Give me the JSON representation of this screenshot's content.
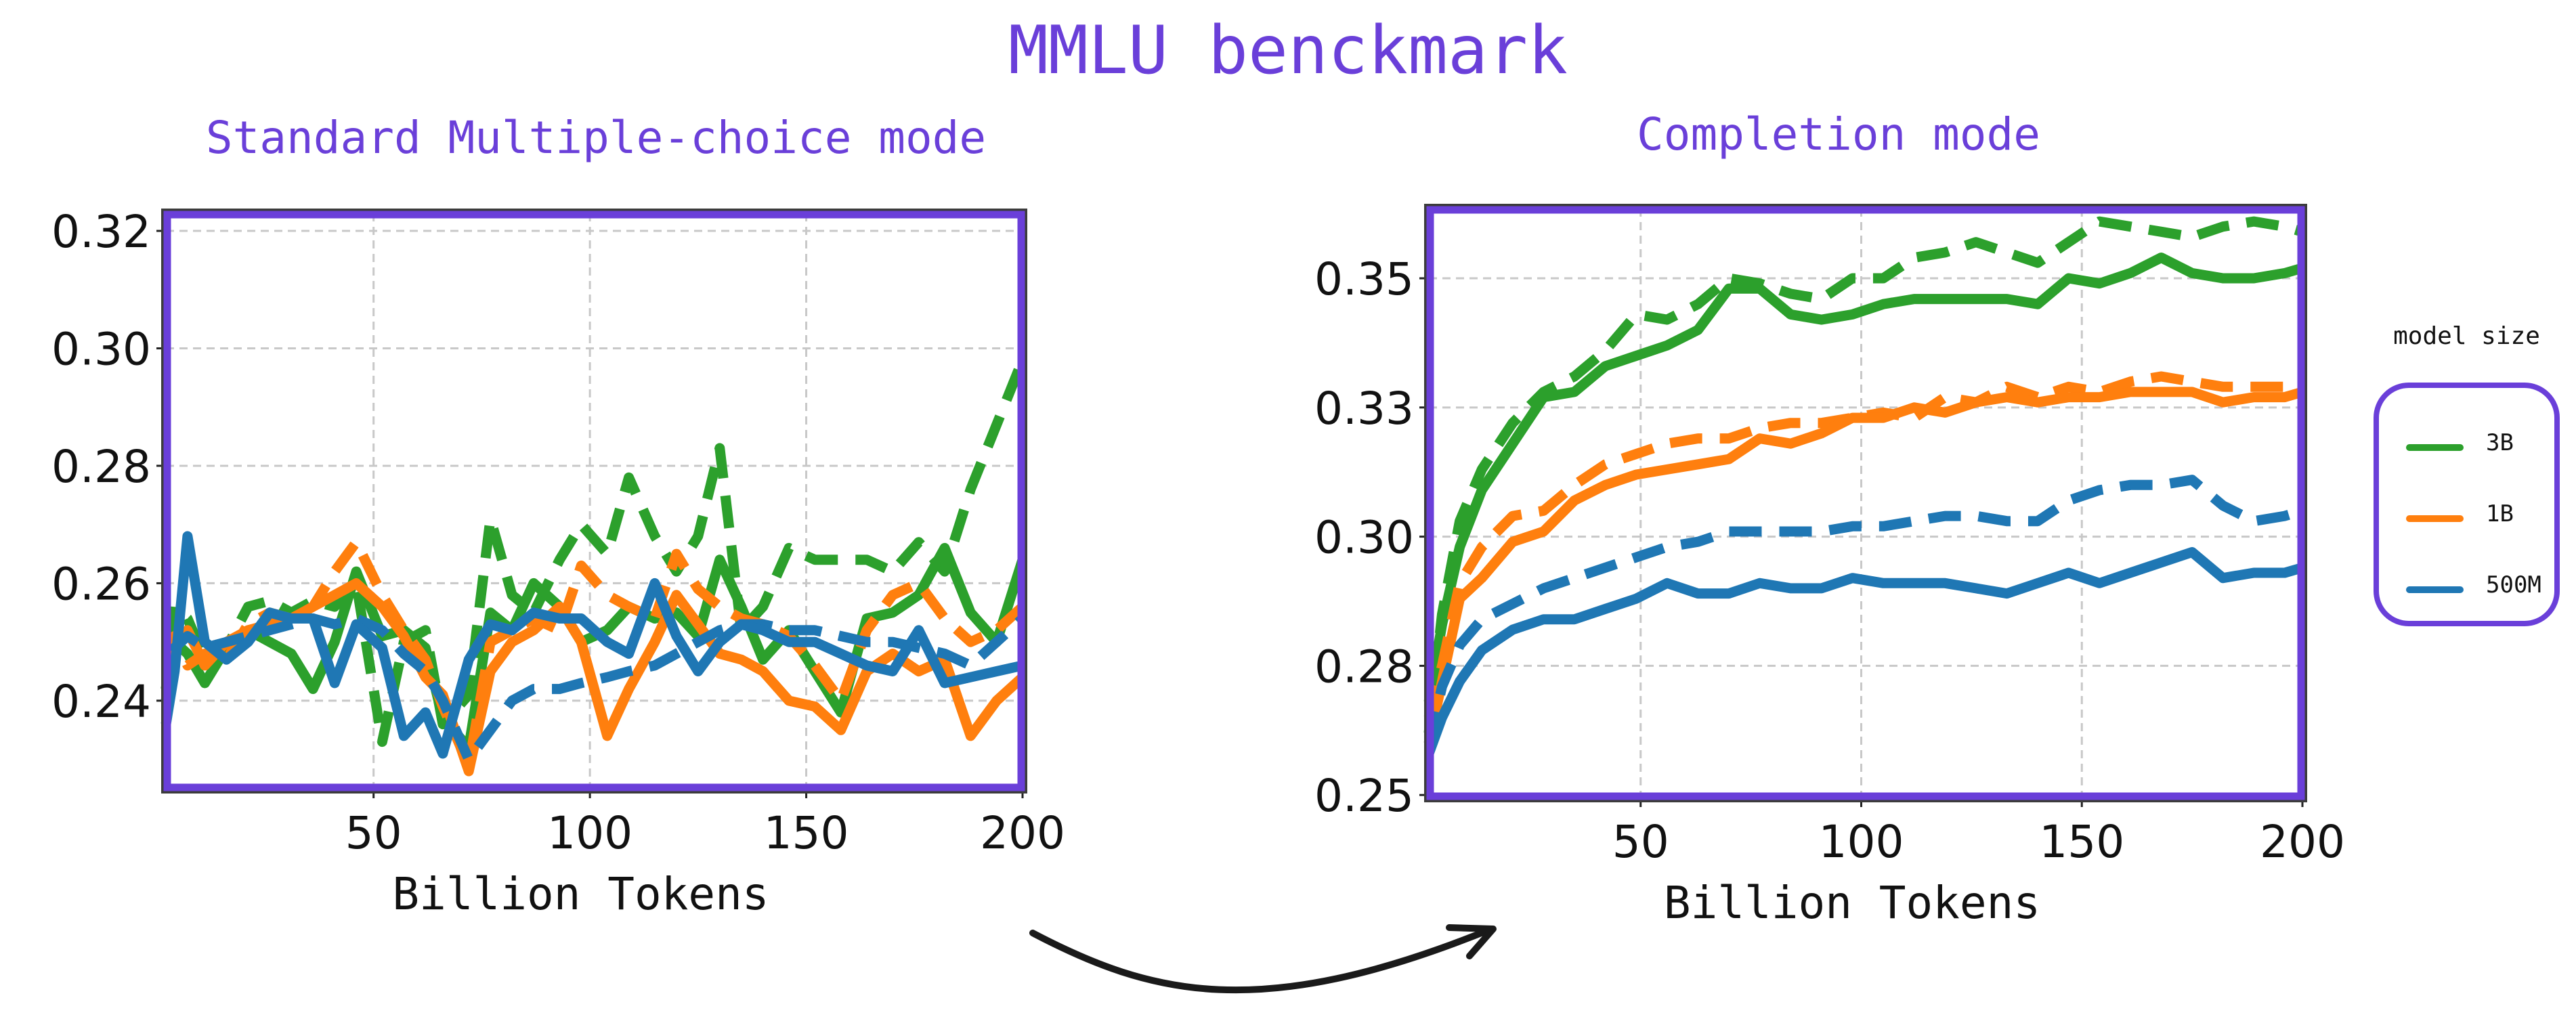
{
  "title": "MMLU benckmark",
  "colors": {
    "accent": "#6A3FD9",
    "green": "#2CA02C",
    "orange": "#FF7F0E",
    "blue": "#1F77B4"
  },
  "legend": {
    "title": "model size",
    "items": [
      {
        "label": "3B",
        "color": "#2CA02C"
      },
      {
        "label": "1B",
        "color": "#FF7F0E"
      },
      {
        "label": "500M",
        "color": "#1F77B4"
      }
    ]
  },
  "chart_data": [
    {
      "type": "line",
      "title": "Standard Multiple-choice mode",
      "xlabel": "Billion Tokens",
      "ylabel": "",
      "xlim": [
        2,
        200
      ],
      "ylim": [
        0.225,
        0.323
      ],
      "xticks": [
        "50",
        "100",
        "150",
        "200"
      ],
      "xtick_values": [
        50,
        100,
        150,
        200
      ],
      "yticks": [
        "0.24",
        "0.26",
        "0.28",
        "0.30",
        "0.32"
      ],
      "ytick_values": [
        0.24,
        0.26,
        0.28,
        0.3,
        0.32
      ],
      "grid": true,
      "series": [
        {
          "color": "#2CA02C",
          "dash": true,
          "x": [
            2,
            4,
            7,
            11,
            16,
            21,
            26,
            31,
            36,
            41,
            46,
            52,
            57,
            62,
            66,
            72,
            77,
            82,
            87,
            93,
            98,
            104,
            109,
            115,
            120,
            125,
            130,
            135,
            140,
            146,
            152,
            158,
            164,
            170,
            176,
            182,
            188,
            194,
            200
          ],
          "y": [
            0.242,
            0.256,
            0.254,
            0.247,
            0.249,
            0.256,
            0.257,
            0.255,
            0.257,
            0.256,
            0.26,
            0.233,
            0.25,
            0.252,
            0.236,
            0.241,
            0.271,
            0.258,
            0.255,
            0.264,
            0.27,
            0.265,
            0.278,
            0.268,
            0.262,
            0.268,
            0.283,
            0.252,
            0.256,
            0.266,
            0.264,
            0.264,
            0.264,
            0.262,
            0.267,
            0.262,
            0.276,
            0.287,
            0.298
          ]
        },
        {
          "color": "#2CA02C",
          "dash": false,
          "x": [
            2,
            4,
            7,
            11,
            16,
            21,
            26,
            31,
            36,
            41,
            46,
            52,
            57,
            62,
            66,
            72,
            77,
            82,
            87,
            93,
            98,
            104,
            109,
            115,
            120,
            125,
            130,
            135,
            140,
            146,
            152,
            158,
            164,
            170,
            176,
            182,
            188,
            194,
            200
          ],
          "y": [
            0.242,
            0.25,
            0.248,
            0.243,
            0.249,
            0.252,
            0.25,
            0.248,
            0.242,
            0.25,
            0.262,
            0.251,
            0.252,
            0.249,
            0.237,
            0.232,
            0.255,
            0.252,
            0.26,
            0.256,
            0.25,
            0.252,
            0.256,
            0.254,
            0.255,
            0.251,
            0.264,
            0.256,
            0.247,
            0.252,
            0.245,
            0.238,
            0.254,
            0.255,
            0.258,
            0.266,
            0.255,
            0.25,
            0.264
          ]
        },
        {
          "color": "#FF7F0E",
          "dash": true,
          "x": [
            2,
            4,
            7,
            11,
            16,
            21,
            26,
            31,
            36,
            41,
            46,
            52,
            57,
            62,
            66,
            72,
            77,
            82,
            87,
            93,
            98,
            104,
            109,
            115,
            120,
            125,
            130,
            135,
            140,
            146,
            152,
            158,
            164,
            170,
            176,
            182,
            188,
            194,
            200
          ],
          "y": [
            0.248,
            0.251,
            0.246,
            0.248,
            0.247,
            0.253,
            0.255,
            0.254,
            0.256,
            0.262,
            0.267,
            0.258,
            0.252,
            0.247,
            0.239,
            0.229,
            0.25,
            0.252,
            0.254,
            0.252,
            0.263,
            0.258,
            0.256,
            0.254,
            0.265,
            0.259,
            0.256,
            0.254,
            0.253,
            0.251,
            0.246,
            0.24,
            0.252,
            0.258,
            0.26,
            0.254,
            0.25,
            0.252,
            0.256
          ]
        },
        {
          "color": "#FF7F0E",
          "dash": false,
          "x": [
            2,
            4,
            7,
            11,
            16,
            21,
            26,
            31,
            36,
            41,
            46,
            52,
            57,
            62,
            66,
            72,
            77,
            82,
            87,
            93,
            98,
            104,
            109,
            115,
            120,
            125,
            130,
            135,
            140,
            146,
            152,
            158,
            164,
            170,
            176,
            182,
            188,
            194,
            200
          ],
          "y": [
            0.245,
            0.249,
            0.252,
            0.246,
            0.25,
            0.252,
            0.253,
            0.254,
            0.256,
            0.258,
            0.26,
            0.256,
            0.251,
            0.244,
            0.241,
            0.228,
            0.245,
            0.25,
            0.252,
            0.256,
            0.25,
            0.234,
            0.242,
            0.25,
            0.258,
            0.253,
            0.248,
            0.247,
            0.245,
            0.24,
            0.239,
            0.235,
            0.245,
            0.248,
            0.245,
            0.247,
            0.234,
            0.24,
            0.244
          ]
        },
        {
          "color": "#1F77B4",
          "dash": true,
          "x": [
            2,
            4,
            7,
            11,
            16,
            21,
            26,
            31,
            36,
            41,
            46,
            52,
            57,
            62,
            66,
            72,
            77,
            82,
            87,
            93,
            98,
            104,
            109,
            115,
            120,
            125,
            130,
            135,
            140,
            146,
            152,
            158,
            164,
            170,
            176,
            182,
            188,
            194,
            200
          ],
          "y": [
            0.24,
            0.249,
            0.251,
            0.249,
            0.25,
            0.251,
            0.252,
            0.253,
            0.254,
            0.253,
            0.254,
            0.252,
            0.248,
            0.245,
            0.24,
            0.23,
            0.235,
            0.24,
            0.242,
            0.242,
            0.243,
            0.244,
            0.245,
            0.246,
            0.248,
            0.25,
            0.252,
            0.253,
            0.253,
            0.252,
            0.252,
            0.251,
            0.25,
            0.25,
            0.249,
            0.248,
            0.246,
            0.25,
            0.254
          ]
        },
        {
          "color": "#1F77B4",
          "dash": false,
          "x": [
            2,
            4,
            7,
            11,
            16,
            21,
            26,
            31,
            36,
            41,
            46,
            52,
            57,
            62,
            66,
            72,
            77,
            82,
            87,
            93,
            98,
            104,
            109,
            115,
            120,
            125,
            130,
            135,
            140,
            146,
            152,
            158,
            164,
            170,
            176,
            182,
            188,
            194,
            200
          ],
          "y": [
            0.236,
            0.245,
            0.268,
            0.25,
            0.247,
            0.25,
            0.255,
            0.254,
            0.254,
            0.243,
            0.253,
            0.249,
            0.234,
            0.238,
            0.231,
            0.247,
            0.253,
            0.252,
            0.255,
            0.254,
            0.254,
            0.25,
            0.248,
            0.26,
            0.251,
            0.245,
            0.25,
            0.253,
            0.252,
            0.25,
            0.25,
            0.248,
            0.246,
            0.245,
            0.252,
            0.243,
            0.244,
            0.245,
            0.246
          ]
        }
      ]
    },
    {
      "type": "line",
      "title": "Completion mode",
      "xlabel": "Billion Tokens",
      "ylabel": "",
      "xlim": [
        2,
        200
      ],
      "ylim": [
        0.2495,
        0.3635
      ],
      "xticks": [
        "50",
        "100",
        "150",
        "200"
      ],
      "xtick_values": [
        50,
        100,
        150,
        200
      ],
      "yticks": [
        "0.25",
        "0.28",
        "0.30",
        "0.33",
        "0.35"
      ],
      "ytick_values": [
        0.25,
        0.275,
        0.3,
        0.325,
        0.35
      ],
      "grid": true,
      "series": [
        {
          "color": "#2CA02C",
          "dash": true,
          "x": [
            2,
            5,
            9,
            14,
            21,
            28,
            35,
            42,
            49,
            56,
            63,
            70,
            77,
            84,
            91,
            98,
            105,
            112,
            119,
            126,
            133,
            140,
            147,
            154,
            161,
            168,
            175,
            182,
            189,
            196,
            200
          ],
          "y": [
            0.262,
            0.285,
            0.303,
            0.313,
            0.322,
            0.328,
            0.331,
            0.336,
            0.343,
            0.342,
            0.345,
            0.35,
            0.349,
            0.347,
            0.346,
            0.35,
            0.35,
            0.354,
            0.355,
            0.357,
            0.355,
            0.353,
            0.357,
            0.361,
            0.36,
            0.359,
            0.358,
            0.36,
            0.361,
            0.36,
            0.359
          ]
        },
        {
          "color": "#2CA02C",
          "dash": false,
          "x": [
            2,
            5,
            9,
            14,
            21,
            28,
            35,
            42,
            49,
            56,
            63,
            70,
            77,
            84,
            91,
            98,
            105,
            112,
            119,
            126,
            133,
            140,
            147,
            154,
            161,
            168,
            175,
            182,
            189,
            196,
            200
          ],
          "y": [
            0.268,
            0.283,
            0.298,
            0.309,
            0.318,
            0.327,
            0.328,
            0.333,
            0.335,
            0.337,
            0.34,
            0.348,
            0.348,
            0.343,
            0.342,
            0.343,
            0.345,
            0.346,
            0.346,
            0.346,
            0.346,
            0.345,
            0.35,
            0.349,
            0.351,
            0.354,
            0.351,
            0.35,
            0.35,
            0.351,
            0.352
          ]
        },
        {
          "color": "#FF7F0E",
          "dash": true,
          "x": [
            2,
            5,
            9,
            14,
            21,
            28,
            35,
            42,
            49,
            56,
            63,
            70,
            77,
            84,
            91,
            98,
            105,
            112,
            119,
            126,
            133,
            140,
            147,
            154,
            161,
            168,
            175,
            182,
            189,
            196,
            200
          ],
          "y": [
            0.265,
            0.275,
            0.291,
            0.298,
            0.304,
            0.305,
            0.31,
            0.314,
            0.316,
            0.318,
            0.319,
            0.319,
            0.321,
            0.322,
            0.322,
            0.323,
            0.324,
            0.323,
            0.327,
            0.326,
            0.329,
            0.327,
            0.329,
            0.328,
            0.33,
            0.331,
            0.33,
            0.329,
            0.329,
            0.329,
            0.33
          ]
        },
        {
          "color": "#FF7F0E",
          "dash": false,
          "x": [
            2,
            5,
            9,
            14,
            21,
            28,
            35,
            42,
            49,
            56,
            63,
            70,
            77,
            84,
            91,
            98,
            105,
            112,
            119,
            126,
            133,
            140,
            147,
            154,
            161,
            168,
            175,
            182,
            189,
            196,
            200
          ],
          "y": [
            0.26,
            0.272,
            0.288,
            0.292,
            0.299,
            0.301,
            0.307,
            0.31,
            0.312,
            0.313,
            0.314,
            0.315,
            0.319,
            0.318,
            0.32,
            0.323,
            0.323,
            0.325,
            0.324,
            0.326,
            0.327,
            0.326,
            0.327,
            0.327,
            0.328,
            0.328,
            0.328,
            0.326,
            0.327,
            0.327,
            0.328
          ]
        },
        {
          "color": "#1F77B4",
          "dash": true,
          "x": [
            2,
            5,
            9,
            14,
            21,
            28,
            35,
            42,
            49,
            56,
            63,
            70,
            77,
            84,
            91,
            98,
            105,
            112,
            119,
            126,
            133,
            140,
            147,
            154,
            161,
            168,
            175,
            182,
            189,
            196,
            200
          ],
          "y": [
            0.26,
            0.271,
            0.279,
            0.284,
            0.287,
            0.29,
            0.292,
            0.294,
            0.296,
            0.298,
            0.299,
            0.301,
            0.301,
            0.301,
            0.301,
            0.302,
            0.302,
            0.303,
            0.304,
            0.304,
            0.303,
            0.303,
            0.307,
            0.309,
            0.31,
            0.31,
            0.311,
            0.306,
            0.303,
            0.304,
            0.305
          ]
        },
        {
          "color": "#1F77B4",
          "dash": false,
          "x": [
            2,
            5,
            9,
            14,
            21,
            28,
            35,
            42,
            49,
            56,
            63,
            70,
            77,
            84,
            91,
            98,
            105,
            112,
            119,
            126,
            133,
            140,
            147,
            154,
            161,
            168,
            175,
            182,
            189,
            196,
            200
          ],
          "y": [
            0.258,
            0.265,
            0.272,
            0.278,
            0.282,
            0.284,
            0.284,
            0.286,
            0.288,
            0.291,
            0.289,
            0.289,
            0.291,
            0.29,
            0.29,
            0.292,
            0.291,
            0.291,
            0.291,
            0.29,
            0.289,
            0.291,
            0.293,
            0.291,
            0.293,
            0.295,
            0.297,
            0.292,
            0.293,
            0.293,
            0.294
          ]
        }
      ]
    }
  ]
}
